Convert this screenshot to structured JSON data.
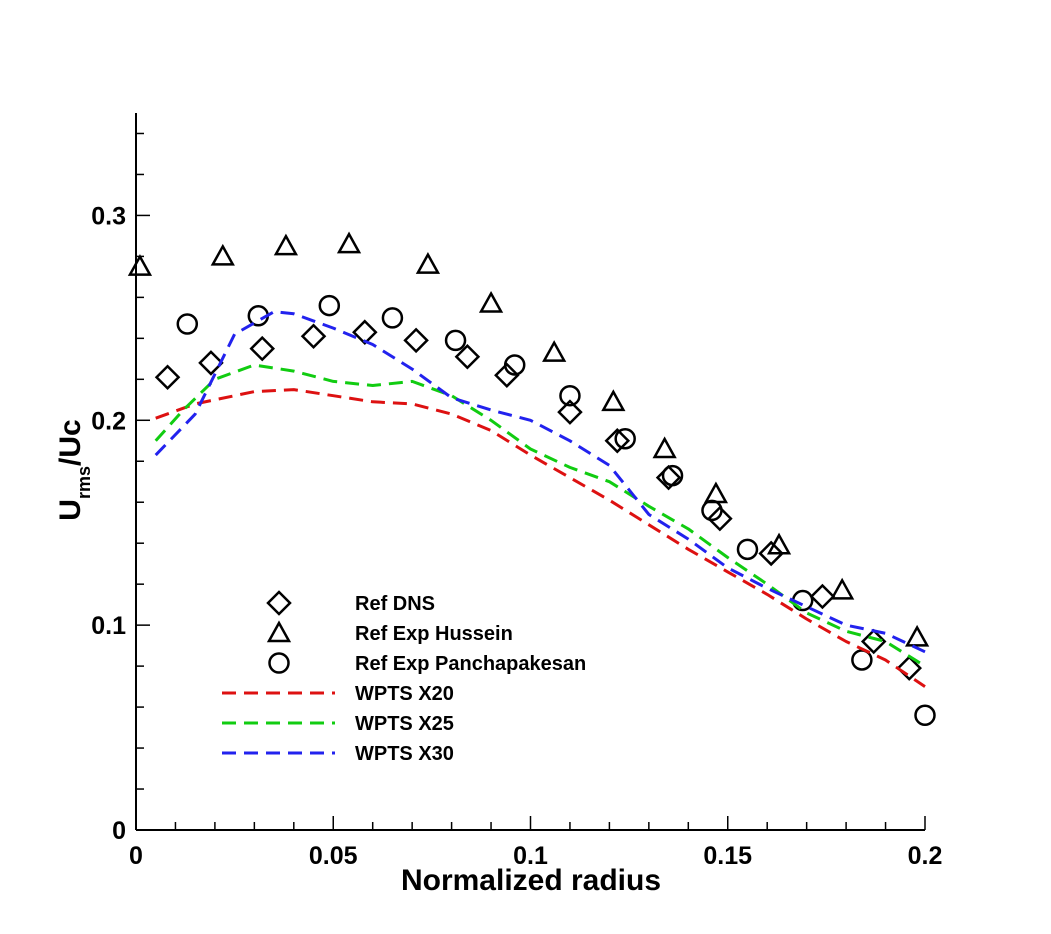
{
  "chart_data": {
    "type": "line",
    "xlabel": "Normalized radius",
    "ylabel": {
      "main": "U",
      "sub": "rms",
      "rest": "/Uc"
    },
    "xlim": [
      0,
      0.2
    ],
    "ylim": [
      0,
      0.35
    ],
    "x_ticks": [
      0,
      0.05,
      0.1,
      0.15,
      0.2
    ],
    "x_tick_labels": [
      "0",
      "0.05",
      "0.1",
      "0.15",
      "0.2"
    ],
    "y_ticks": [
      0,
      0.1,
      0.2,
      0.3
    ],
    "y_tick_labels": [
      "0",
      "0.1",
      "0.2",
      "0.3"
    ],
    "legend_position": "lower-left",
    "series": [
      {
        "name": "Ref DNS",
        "kind": "marker",
        "marker": "diamond",
        "x": [
          0.008,
          0.019,
          0.032,
          0.045,
          0.058,
          0.071,
          0.084,
          0.094,
          0.11,
          0.122,
          0.135,
          0.148,
          0.161,
          0.174,
          0.187,
          0.196
        ],
        "y": [
          0.221,
          0.228,
          0.235,
          0.241,
          0.243,
          0.239,
          0.231,
          0.222,
          0.204,
          0.19,
          0.172,
          0.152,
          0.135,
          0.114,
          0.092,
          0.079
        ]
      },
      {
        "name": "Ref Exp Hussein",
        "kind": "marker",
        "marker": "triangle",
        "x": [
          0.001,
          0.022,
          0.038,
          0.054,
          0.074,
          0.09,
          0.106,
          0.121,
          0.134,
          0.147,
          0.163,
          0.179,
          0.198
        ],
        "y": [
          0.275,
          0.28,
          0.285,
          0.286,
          0.276,
          0.257,
          0.233,
          0.209,
          0.186,
          0.164,
          0.139,
          0.117,
          0.094
        ]
      },
      {
        "name": "Ref Exp Panchapakesan",
        "kind": "marker",
        "marker": "circle",
        "x": [
          0.013,
          0.031,
          0.049,
          0.065,
          0.081,
          0.096,
          0.11,
          0.124,
          0.136,
          0.146,
          0.155,
          0.169,
          0.184,
          0.2
        ],
        "y": [
          0.247,
          0.251,
          0.256,
          0.25,
          0.239,
          0.227,
          0.212,
          0.191,
          0.173,
          0.156,
          0.137,
          0.112,
          0.083,
          0.056
        ]
      },
      {
        "name": "WPTS X20",
        "kind": "line",
        "color": "#dd1111",
        "x": [
          0.005,
          0.015,
          0.03,
          0.04,
          0.05,
          0.06,
          0.07,
          0.08,
          0.09,
          0.1,
          0.11,
          0.12,
          0.13,
          0.14,
          0.15,
          0.16,
          0.17,
          0.18,
          0.19,
          0.2
        ],
        "y": [
          0.201,
          0.208,
          0.214,
          0.215,
          0.212,
          0.209,
          0.208,
          0.203,
          0.195,
          0.183,
          0.172,
          0.161,
          0.149,
          0.137,
          0.126,
          0.115,
          0.103,
          0.092,
          0.083,
          0.07
        ]
      },
      {
        "name": "WPTS X25",
        "kind": "line",
        "color": "#11cc11",
        "x": [
          0.005,
          0.012,
          0.02,
          0.03,
          0.04,
          0.05,
          0.06,
          0.07,
          0.08,
          0.09,
          0.1,
          0.11,
          0.12,
          0.13,
          0.14,
          0.15,
          0.16,
          0.17,
          0.18,
          0.19,
          0.2
        ],
        "y": [
          0.19,
          0.205,
          0.22,
          0.227,
          0.224,
          0.219,
          0.217,
          0.219,
          0.212,
          0.2,
          0.186,
          0.177,
          0.17,
          0.158,
          0.147,
          0.133,
          0.12,
          0.106,
          0.097,
          0.092,
          0.08
        ]
      },
      {
        "name": "WPTS X30",
        "kind": "line",
        "color": "#2222ee",
        "x": [
          0.005,
          0.015,
          0.025,
          0.035,
          0.04,
          0.05,
          0.06,
          0.07,
          0.08,
          0.09,
          0.1,
          0.11,
          0.12,
          0.13,
          0.14,
          0.15,
          0.16,
          0.17,
          0.18,
          0.19,
          0.2
        ],
        "y": [
          0.183,
          0.203,
          0.242,
          0.253,
          0.252,
          0.245,
          0.237,
          0.225,
          0.211,
          0.205,
          0.2,
          0.19,
          0.178,
          0.154,
          0.142,
          0.128,
          0.118,
          0.109,
          0.1,
          0.096,
          0.087
        ]
      }
    ]
  }
}
